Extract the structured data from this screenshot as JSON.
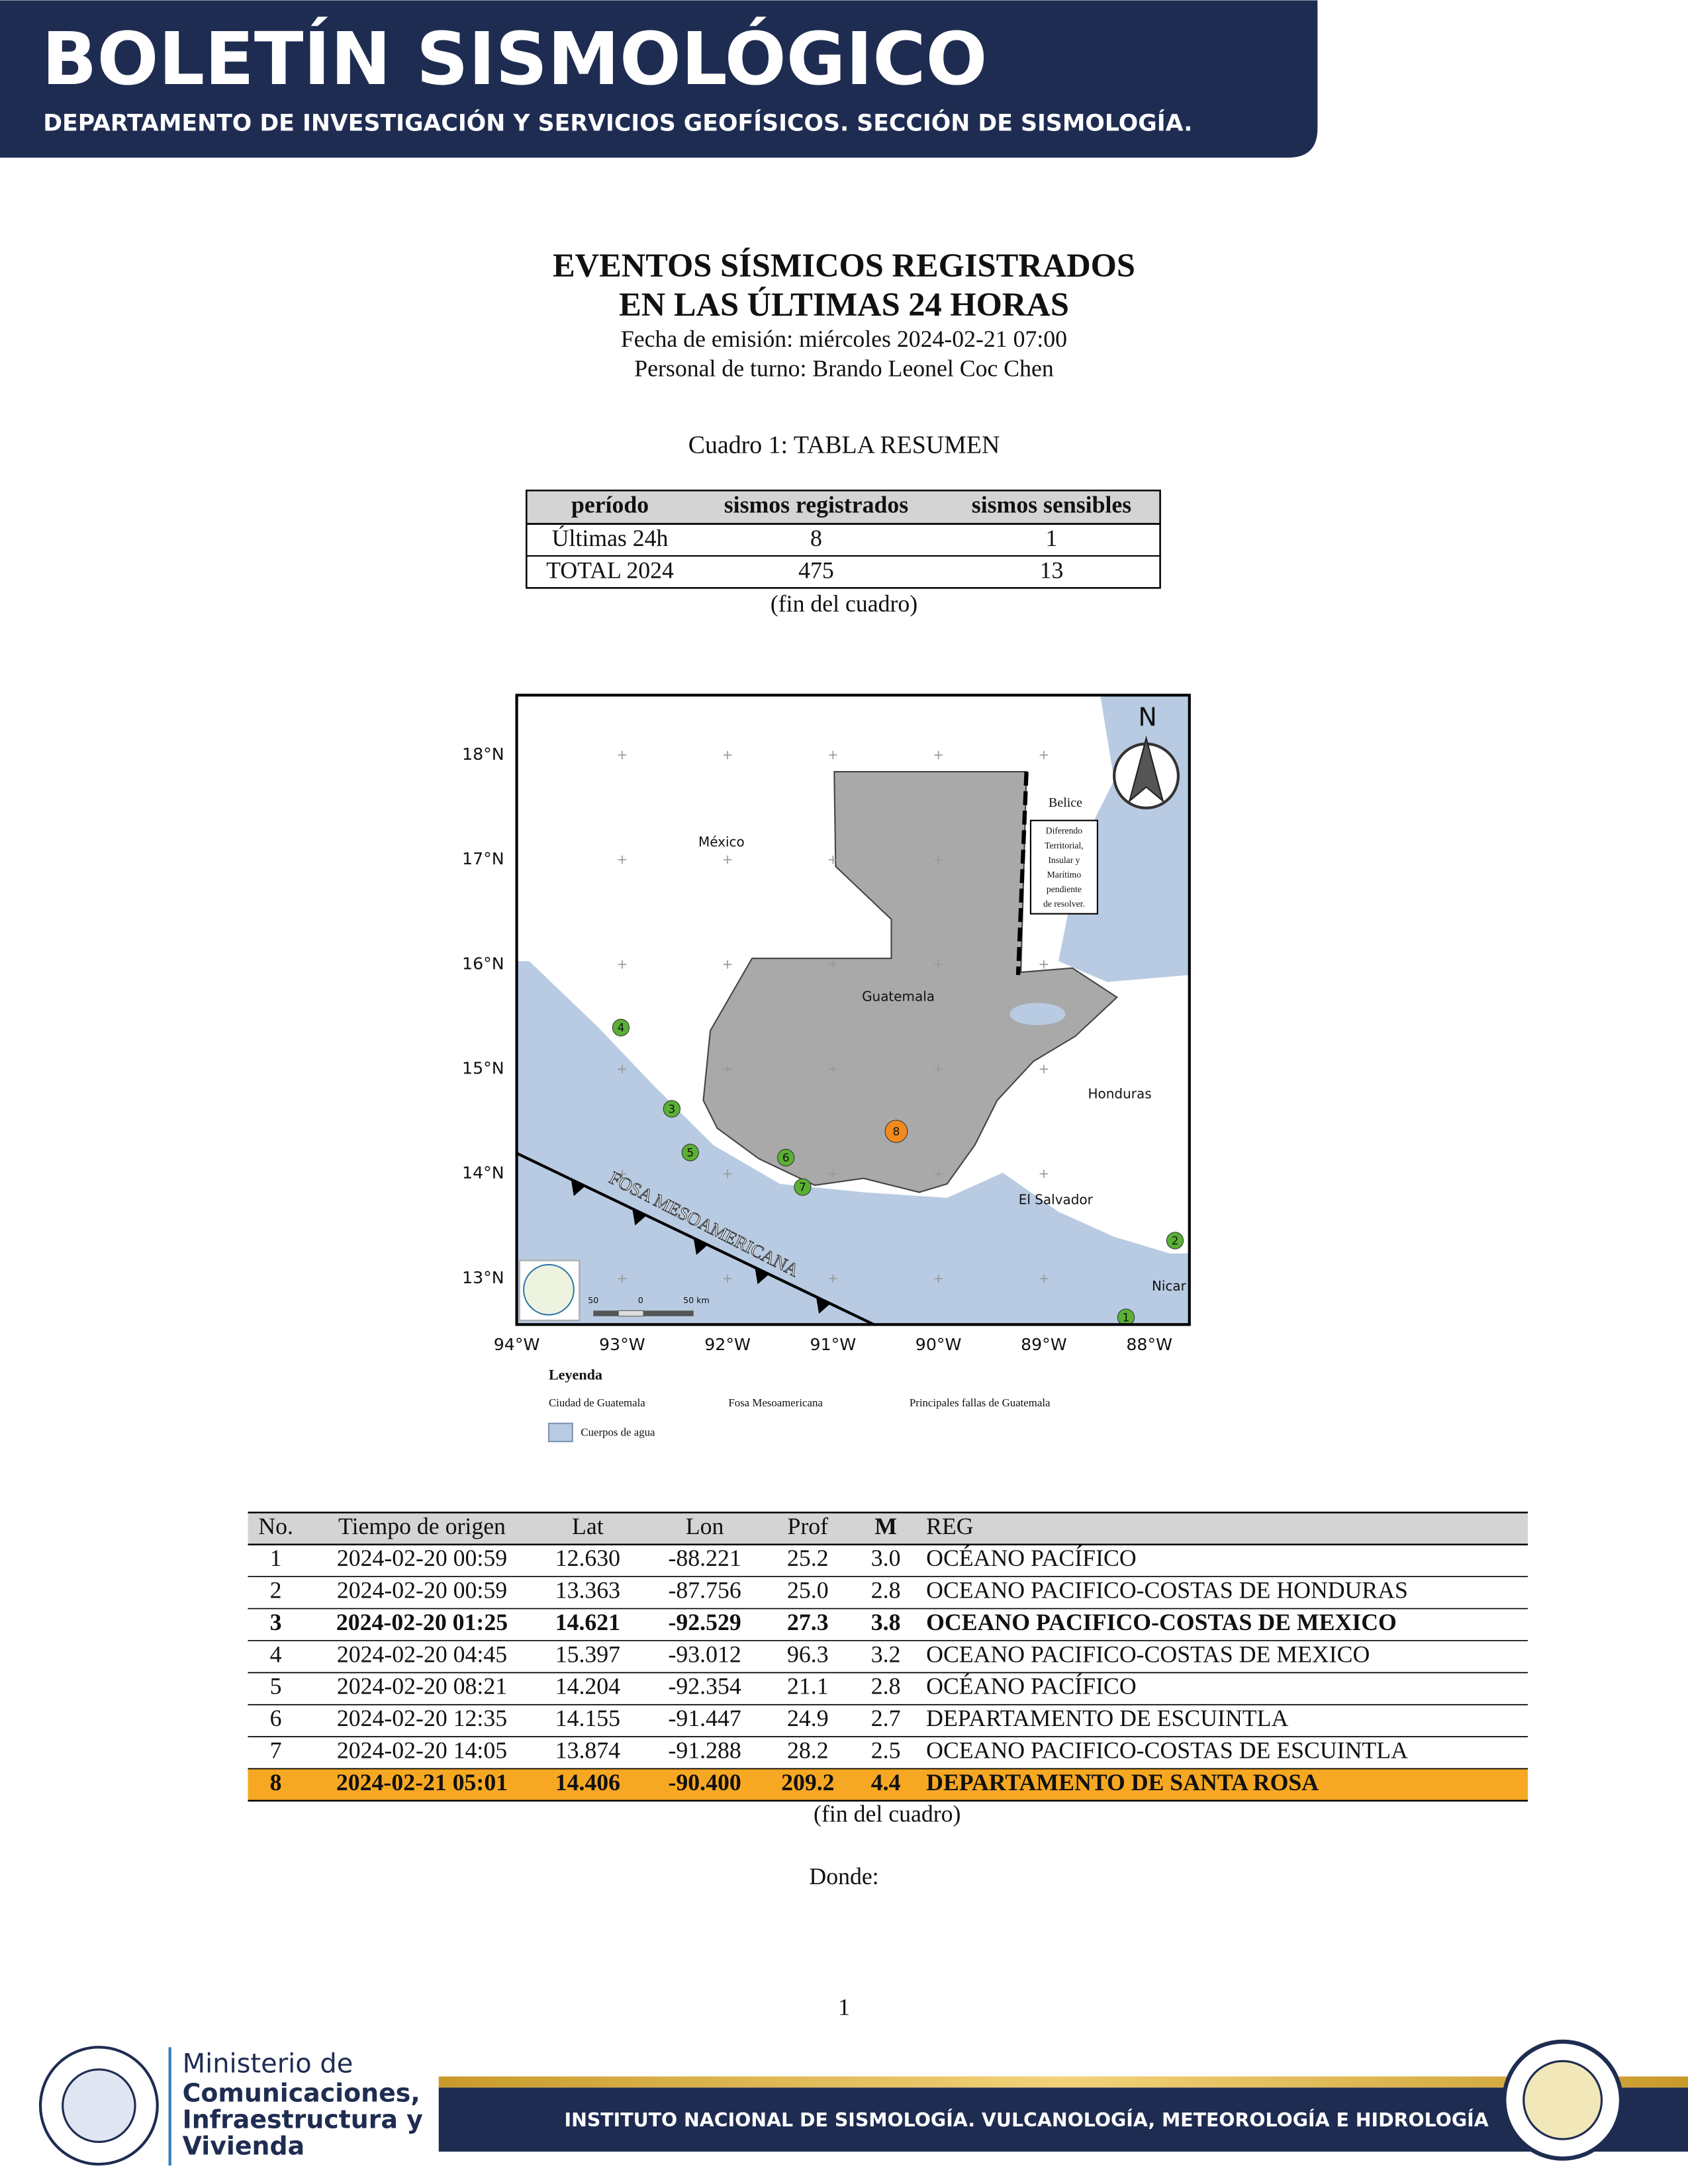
{
  "header": {
    "title": "BOLETÍN SISMOLÓGICO",
    "subtitle": "DEPARTAMENTO DE INVESTIGACIÓN Y SERVICIOS GEOFÍSICOS. SECCIÓN DE SISMOLOGÍA."
  },
  "report": {
    "title_lines": [
      "EVENTOS SÍSMICOS REGISTRADOS",
      "EN LAS ÚLTIMAS 24 HORAS"
    ],
    "issued": "Fecha de emisión: miércoles 2024-02-21 07:00",
    "staff": "Personal de turno: Brando Leonel Coc Chen"
  },
  "summary": {
    "caption": "Cuadro 1: TABLA RESUMEN",
    "columns": [
      "período",
      "sismos registrados",
      "sismos sensibles"
    ],
    "rows": [
      [
        "Últimas 24h",
        "8",
        "1"
      ],
      [
        "TOTAL 2024",
        "475",
        "13"
      ]
    ],
    "end_note": "(fin del cuadro)"
  },
  "map": {
    "lat_labels": [
      "18°N",
      "17°N",
      "16°N",
      "15°N",
      "14°N",
      "13°N"
    ],
    "lon_labels": [
      "94°W",
      "93°W",
      "92°W",
      "91°W",
      "90°W",
      "89°W",
      "88°W"
    ],
    "places": [
      "México",
      "Guatemala",
      "Belice",
      "Honduras",
      "El Salvador",
      "Nicar"
    ],
    "dispute_note": [
      "Diferendo",
      "Territorial,",
      "Insular y",
      "Marítimo",
      "pendiente",
      "de resolver."
    ],
    "trench_label": "FOSA MESOAMERICANA",
    "north": "N",
    "scale_labels": [
      "50",
      "0",
      "50 km"
    ],
    "legend": {
      "title": "Leyenda",
      "items": [
        "Ciudad de Guatemala",
        "Fosa Mesoamericana",
        "Principales fallas de Guatemala",
        "Cuerpos de agua"
      ]
    }
  },
  "events": {
    "columns": [
      "No.",
      "Tiempo de origen",
      "Lat",
      "Lon",
      "Prof",
      "M",
      "REG"
    ],
    "rows": [
      [
        "1",
        "2024-02-20 00:59",
        "12.630",
        "-88.221",
        "25.2",
        "3.0",
        "OCÉANO PACÍFICO"
      ],
      [
        "2",
        "2024-02-20 00:59",
        "13.363",
        "-87.756",
        "25.0",
        "2.8",
        "OCEANO PACIFICO-COSTAS DE HONDURAS"
      ],
      [
        "3",
        "2024-02-20 01:25",
        "14.621",
        "-92.529",
        "27.3",
        "3.8",
        "OCEANO PACIFICO-COSTAS DE MEXICO"
      ],
      [
        "4",
        "2024-02-20 04:45",
        "15.397",
        "-93.012",
        "96.3",
        "3.2",
        "OCEANO PACIFICO-COSTAS DE MEXICO"
      ],
      [
        "5",
        "2024-02-20 08:21",
        "14.204",
        "-92.354",
        "21.1",
        "2.8",
        "OCÉANO PACÍFICO"
      ],
      [
        "6",
        "2024-02-20 12:35",
        "14.155",
        "-91.447",
        "24.9",
        "2.7",
        "DEPARTAMENTO DE ESCUINTLA"
      ],
      [
        "7",
        "2024-02-20 14:05",
        "13.874",
        "-91.288",
        "28.2",
        "2.5",
        "OCEANO PACIFICO-COSTAS DE ESCUINTLA"
      ],
      [
        "8",
        "2024-02-21 05:01",
        "14.406",
        "-90.400",
        "209.2",
        "4.4",
        "DEPARTAMENTO DE SANTA ROSA"
      ]
    ],
    "end_note": "(fin del cuadro)"
  },
  "closing": "Donde:",
  "page_number": "1",
  "footer": {
    "ministry": [
      "Ministerio de",
      "Comunicaciones,",
      "Infraestructura y",
      "Vivienda"
    ],
    "institute": "INSTITUTO NACIONAL DE SISMOLOGÍA. VULCANOLOGÍA, METEOROLOGÍA E HIDROLOGÍA"
  }
}
